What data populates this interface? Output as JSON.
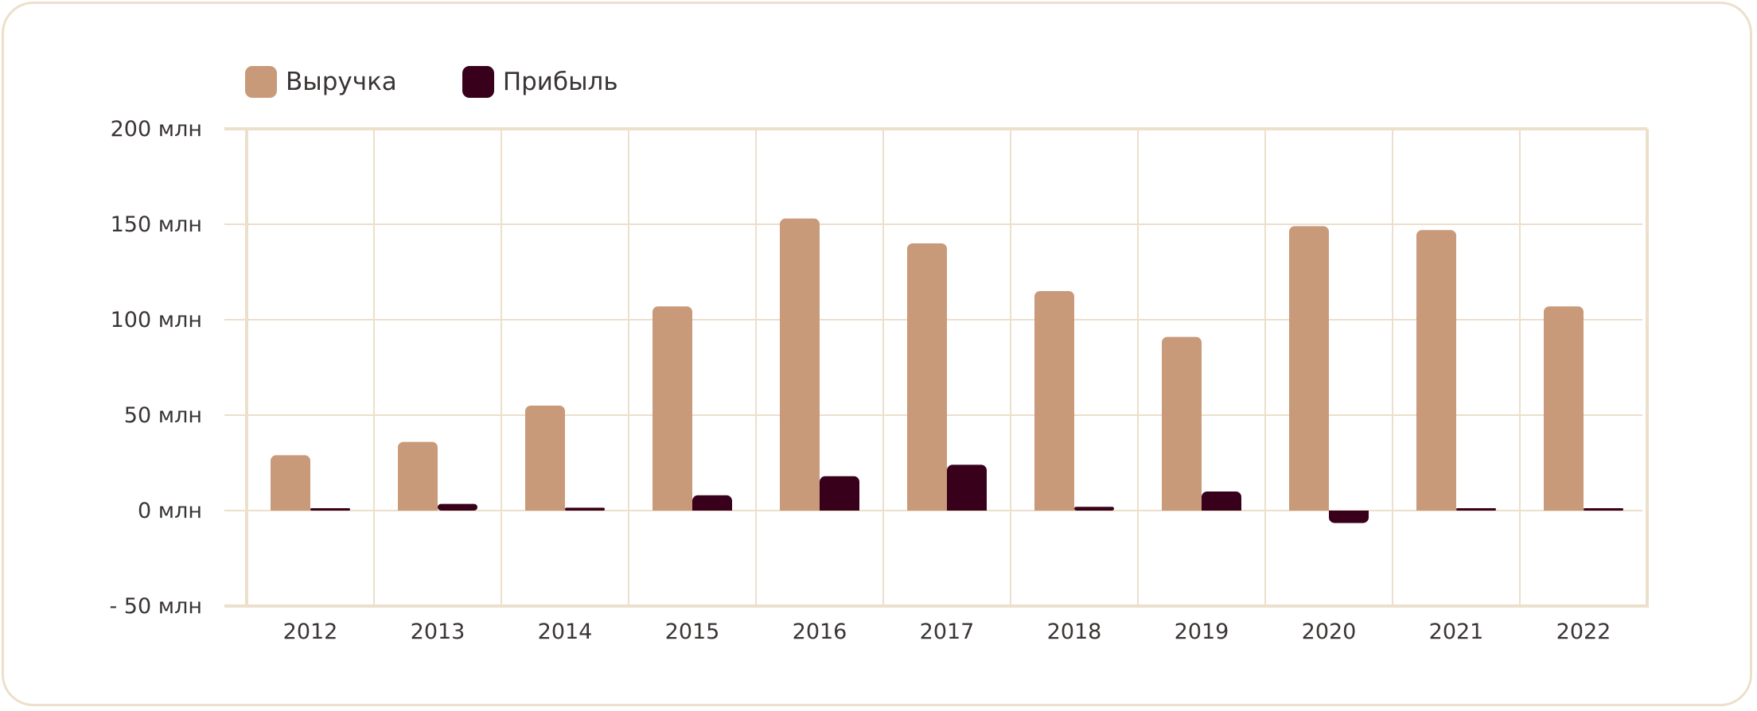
{
  "colors": {
    "revenue": "#c99a7a",
    "profit": "#38001a",
    "grid": "#ecdfcb",
    "text": "#3a3434"
  },
  "legend": [
    {
      "label": "Выручка",
      "color": "#c99a7a"
    },
    {
      "label": "Прибыль",
      "color": "#38001a"
    }
  ],
  "chart_data": {
    "type": "bar",
    "categories": [
      "2012",
      "2013",
      "2014",
      "2015",
      "2016",
      "2017",
      "2018",
      "2019",
      "2020",
      "2021",
      "2022"
    ],
    "series": [
      {
        "name": "Выручка",
        "values": [
          29,
          36,
          55,
          107,
          153,
          140,
          115,
          91,
          149,
          147,
          107
        ]
      },
      {
        "name": "Прибыль",
        "values": [
          0.5,
          3.5,
          1.5,
          8,
          18,
          24,
          2,
          10,
          -6.5,
          0.5,
          0.5
        ]
      }
    ],
    "ylim": [
      -50,
      200
    ],
    "yticks": [
      200,
      150,
      100,
      50,
      0,
      -50
    ],
    "ytick_labels": [
      "200 млн",
      "150 млн",
      "100 млн",
      "50 млн",
      "0 млн",
      "- 50 млн"
    ],
    "grid": true,
    "legend_position": "top-left"
  }
}
